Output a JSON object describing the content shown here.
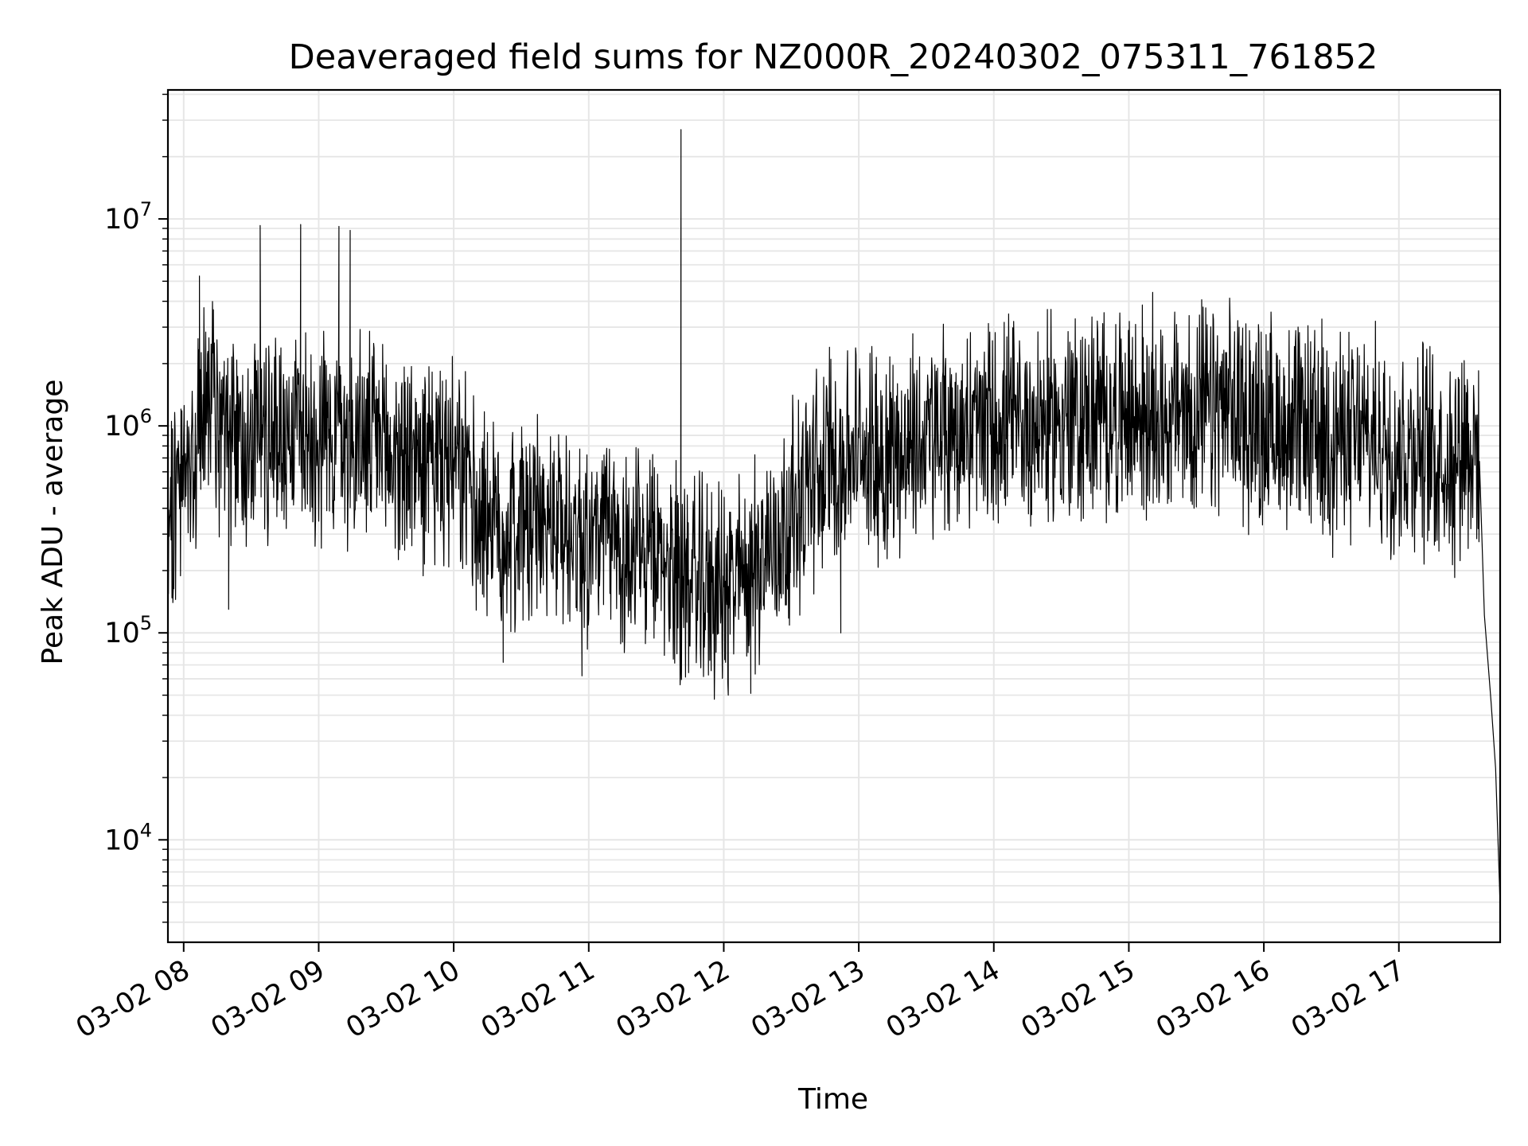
{
  "chart_data": {
    "type": "line",
    "title": "Deaveraged field sums for NZ000R_20240302_075311_761852",
    "xlabel": "Time",
    "ylabel": "Peak ADU - average",
    "y_scale": "log",
    "ylim": [
      3200,
      42000000
    ],
    "xlim": [
      "03-02 07:53",
      "03-02 17:45"
    ],
    "grid": true,
    "line_color": "#000000",
    "grid_color": "#e6e6e6",
    "x_ticks": [
      {
        "t": "03-02 08:00",
        "label": "03-02 08"
      },
      {
        "t": "03-02 09:00",
        "label": "03-02 09"
      },
      {
        "t": "03-02 10:00",
        "label": "03-02 10"
      },
      {
        "t": "03-02 11:00",
        "label": "03-02 11"
      },
      {
        "t": "03-02 12:00",
        "label": "03-02 12"
      },
      {
        "t": "03-02 13:00",
        "label": "03-02 13"
      },
      {
        "t": "03-02 14:00",
        "label": "03-02 14"
      },
      {
        "t": "03-02 15:00",
        "label": "03-02 15"
      },
      {
        "t": "03-02 16:00",
        "label": "03-02 16"
      },
      {
        "t": "03-02 17:00",
        "label": "03-02 17"
      }
    ],
    "y_ticks": [
      {
        "value": 10000,
        "base": "10",
        "exp": "4"
      },
      {
        "value": 100000,
        "base": "10",
        "exp": "5"
      },
      {
        "value": 1000000,
        "base": "10",
        "exp": "6"
      },
      {
        "value": 10000000,
        "base": "10",
        "exp": "7"
      }
    ],
    "series": [
      {
        "x": [
          "03-02 07:53",
          "03-02 08:00",
          "03-02 08:05",
          "03-02 08:10",
          "03-02 08:15",
          "03-02 08:20",
          "03-02 08:30",
          "03-02 08:40",
          "03-02 08:50",
          "03-02 09:00",
          "03-02 09:10",
          "03-02 09:20",
          "03-02 09:30",
          "03-02 09:40",
          "03-02 09:50",
          "03-02 10:00",
          "03-02 10:10",
          "03-02 10:20",
          "03-02 10:30",
          "03-02 10:40",
          "03-02 10:50",
          "03-02 11:00",
          "03-02 11:10",
          "03-02 11:20",
          "03-02 11:30",
          "03-02 11:40",
          "03-02 11:50",
          "03-02 12:00",
          "03-02 12:10",
          "03-02 12:20",
          "03-02 12:30",
          "03-02 12:40",
          "03-02 12:50",
          "03-02 13:00",
          "03-02 13:15",
          "03-02 13:30",
          "03-02 13:45",
          "03-02 14:00",
          "03-02 14:15",
          "03-02 14:30",
          "03-02 14:45",
          "03-02 15:00",
          "03-02 15:15",
          "03-02 15:30",
          "03-02 15:45",
          "03-02 16:00",
          "03-02 16:15",
          "03-02 16:30",
          "03-02 16:45",
          "03-02 17:00",
          "03-02 17:15",
          "03-02 17:25",
          "03-02 17:30",
          "03-02 17:35",
          "03-02 17:38",
          "03-02 17:41",
          "03-02 17:43",
          "03-02 17:45"
        ],
        "y": [
          450000,
          550000,
          650000,
          1700000,
          1000000,
          700000,
          950000,
          900000,
          1000000,
          950000,
          900000,
          850000,
          750000,
          700000,
          650000,
          600000,
          450000,
          300000,
          350000,
          330000,
          320000,
          300000,
          280000,
          250000,
          220000,
          200000,
          170000,
          160000,
          190000,
          260000,
          380000,
          550000,
          700000,
          750000,
          750000,
          850000,
          950000,
          1000000,
          1000000,
          1050000,
          1100000,
          1100000,
          1150000,
          1150000,
          1150000,
          1050000,
          950000,
          900000,
          850000,
          800000,
          750000,
          700000,
          1000000,
          600000,
          150000,
          45000,
          22000,
          5000
        ],
        "spikes": [
          {
            "x": "03-02 08:07",
            "y": 5300000
          },
          {
            "x": "03-02 08:34",
            "y": 9300000
          },
          {
            "x": "03-02 08:52",
            "y": 9400000
          },
          {
            "x": "03-02 09:09",
            "y": 9200000
          },
          {
            "x": "03-02 09:14",
            "y": 8800000
          },
          {
            "x": "03-02 11:41",
            "y": 27000000
          },
          {
            "x": "03-02 12:47",
            "y": 2400000
          },
          {
            "x": "03-02 15:49",
            "y": 3000000
          }
        ],
        "dips": [
          {
            "x": "03-02 08:20",
            "y": 130000
          },
          {
            "x": "03-02 10:22",
            "y": 72000
          },
          {
            "x": "03-02 10:57",
            "y": 62000
          },
          {
            "x": "03-02 12:02",
            "y": 50000
          },
          {
            "x": "03-02 12:12",
            "y": 51000
          },
          {
            "x": "03-02 12:52",
            "y": 100000
          }
        ]
      }
    ]
  }
}
